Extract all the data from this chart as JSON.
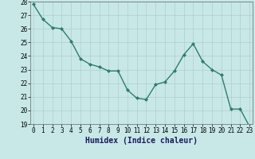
{
  "xlabel": "Humidex (Indice chaleur)",
  "x": [
    0,
    1,
    2,
    3,
    4,
    5,
    6,
    7,
    8,
    9,
    10,
    11,
    12,
    13,
    14,
    15,
    16,
    17,
    18,
    19,
    20,
    21,
    22,
    23
  ],
  "y": [
    27.8,
    26.7,
    26.1,
    26.0,
    25.1,
    23.8,
    23.4,
    23.2,
    22.9,
    22.9,
    21.5,
    20.9,
    20.8,
    21.9,
    22.1,
    22.9,
    24.1,
    24.9,
    23.6,
    23.0,
    22.6,
    20.1,
    20.1,
    18.8
  ],
  "ylim": [
    19,
    28
  ],
  "yticks": [
    19,
    20,
    21,
    22,
    23,
    24,
    25,
    26,
    27,
    28
  ],
  "xticks": [
    0,
    1,
    2,
    3,
    4,
    5,
    6,
    7,
    8,
    9,
    10,
    11,
    12,
    13,
    14,
    15,
    16,
    17,
    18,
    19,
    20,
    21,
    22,
    23
  ],
  "line_color": "#2e7d6e",
  "marker_color": "#2e7d6e",
  "bg_color": "#c8e8e8",
  "grid_color": "#b0cccc",
  "xlabel_color": "#1a1a5a",
  "xlabel_fontsize": 7.0,
  "tick_fontsize": 5.5,
  "linewidth": 1.0,
  "markersize": 2.0
}
